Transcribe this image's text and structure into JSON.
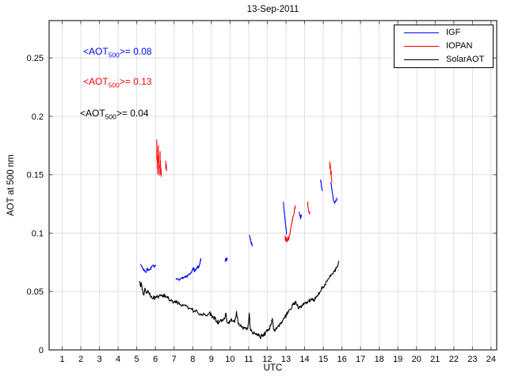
{
  "title": "13-Sep-2011",
  "legend": {
    "entries": [
      {
        "label": "IGF",
        "color": "#0000ff"
      },
      {
        "label": "IOPAN",
        "color": "#ff0000"
      },
      {
        "label": "SolarAOT",
        "color": "#000000"
      }
    ]
  },
  "chart_data": {
    "type": "line",
    "title": "13-Sep-2011",
    "xlabel": "UTC",
    "ylabel": "AOT at 500 nm",
    "xlim": [
      0.3,
      24.3
    ],
    "ylim": [
      0,
      0.282
    ],
    "grid": true,
    "grid_color": "#e0e0e0",
    "axis_color": "#262626",
    "tick_color": "#555555",
    "legend_position": "top-right",
    "xticks": [
      1,
      2,
      3,
      4,
      5,
      6,
      7,
      8,
      9,
      10,
      11,
      12,
      13,
      14,
      15,
      16,
      17,
      18,
      19,
      20,
      21,
      22,
      23,
      24
    ],
    "xtick_labels": [
      "1",
      "2",
      "3",
      "4",
      "5",
      "6",
      "7",
      "8",
      "9",
      "10",
      "11",
      "12",
      "13",
      "14",
      "15",
      "16",
      "17",
      "18",
      "19",
      "20",
      "21",
      "22",
      "23",
      "24"
    ],
    "yticks": [
      0,
      0.05,
      0.1,
      0.15,
      0.2,
      0.25
    ],
    "ytick_labels": [
      "0",
      "0.05",
      "0.1",
      "0.15",
      "0.2",
      "0.25"
    ],
    "annotations": [
      {
        "prefix": "<AOT",
        "sub": "500",
        "suffix": ">= 0.08",
        "color": "#0000ff"
      },
      {
        "prefix": "<AOT",
        "sub": "500",
        "suffix": ">= 0.13",
        "color": "#ff0000"
      },
      {
        "prefix": "<AOT",
        "sub": "500",
        "suffix": ">= 0.04",
        "color": "#000000"
      }
    ],
    "series": [
      {
        "name": "IGF",
        "color": "#0000ff",
        "mean_aot500": 0.08,
        "jitter": 0.0012,
        "segments": [
          [
            [
              5.2,
              0.0735
            ],
            [
              5.28,
              0.0715
            ],
            [
              5.36,
              0.069
            ],
            [
              5.44,
              0.0672
            ],
            [
              5.5,
              0.0668
            ],
            [
              5.56,
              0.0695
            ],
            [
              5.62,
              0.0682
            ],
            [
              5.7,
              0.0688
            ],
            [
              5.78,
              0.0703
            ],
            [
              5.86,
              0.0722
            ],
            [
              5.95,
              0.0712
            ],
            [
              6.02,
              0.0728
            ]
          ],
          [
            [
              7.1,
              0.0605
            ],
            [
              7.2,
              0.061
            ],
            [
              7.3,
              0.0605
            ],
            [
              7.42,
              0.0612
            ],
            [
              7.52,
              0.0618
            ],
            [
              7.62,
              0.0622
            ],
            [
              7.72,
              0.0635
            ],
            [
              7.82,
              0.065
            ],
            [
              7.9,
              0.066
            ],
            [
              7.98,
              0.068
            ],
            [
              8.04,
              0.0705
            ],
            [
              8.1,
              0.0672
            ],
            [
              8.18,
              0.0695
            ],
            [
              8.26,
              0.0718
            ],
            [
              8.32,
              0.0705
            ],
            [
              8.38,
              0.074
            ],
            [
              8.44,
              0.0785
            ]
          ],
          [
            [
              9.74,
              0.0755
            ],
            [
              9.77,
              0.0785
            ],
            [
              9.81,
              0.0762
            ],
            [
              9.85,
              0.0792
            ]
          ],
          [
            [
              11.05,
              0.0985
            ],
            [
              11.09,
              0.0948
            ],
            [
              11.13,
              0.0922
            ],
            [
              11.17,
              0.0905
            ],
            [
              11.2,
              0.0892
            ]
          ],
          [
            [
              12.86,
              0.1268
            ],
            [
              12.89,
              0.1205
            ],
            [
              12.92,
              0.1165
            ],
            [
              12.95,
              0.112
            ],
            [
              12.98,
              0.107
            ],
            [
              13.01,
              0.103
            ],
            [
              13.04,
              0.0992
            ]
          ],
          [
            [
              13.71,
              0.1182
            ],
            [
              13.75,
              0.1148
            ],
            [
              13.79,
              0.1128
            ],
            [
              13.83,
              0.1158
            ]
          ],
          [
            [
              14.86,
              0.1458
            ],
            [
              14.89,
              0.1422
            ],
            [
              14.92,
              0.1392
            ],
            [
              14.95,
              0.1362
            ]
          ],
          [
            [
              15.4,
              0.1438
            ],
            [
              15.45,
              0.1382
            ],
            [
              15.5,
              0.1332
            ],
            [
              15.55,
              0.128
            ],
            [
              15.6,
              0.1255
            ],
            [
              15.65,
              0.1268
            ],
            [
              15.7,
              0.1285
            ],
            [
              15.75,
              0.1302
            ]
          ]
        ]
      },
      {
        "name": "IOPAN",
        "color": "#ff0000",
        "mean_aot500": 0.13,
        "jitter": 0.0015,
        "segments": [
          [
            [
              6.07,
              0.1802
            ],
            [
              6.08,
              0.1625
            ],
            [
              6.09,
              0.1732
            ],
            [
              6.1,
              0.1555
            ],
            [
              6.11,
              0.1658
            ],
            [
              6.12,
              0.1502
            ]
          ],
          [
            [
              6.16,
              0.1752
            ],
            [
              6.17,
              0.1602
            ],
            [
              6.18,
              0.1682
            ],
            [
              6.19,
              0.1522
            ],
            [
              6.2,
              0.1582
            ],
            [
              6.21,
              0.1492
            ]
          ],
          [
            [
              6.25,
              0.1702
            ],
            [
              6.26,
              0.1562
            ],
            [
              6.27,
              0.1622
            ],
            [
              6.28,
              0.1502
            ],
            [
              6.3,
              0.1552
            ],
            [
              6.32,
              0.1482
            ]
          ],
          [
            [
              6.55,
              0.162
            ],
            [
              6.56,
              0.1552
            ],
            [
              6.58,
              0.1592
            ],
            [
              6.6,
              0.1532
            ]
          ],
          [
            [
              12.95,
              0.098
            ],
            [
              12.98,
              0.0932
            ],
            [
              13.02,
              0.0962
            ],
            [
              13.06,
              0.0925
            ],
            [
              13.1,
              0.097
            ],
            [
              13.15,
              0.0945
            ],
            [
              13.2,
              0.099
            ],
            [
              13.25,
              0.104
            ],
            [
              13.3,
              0.108
            ],
            [
              13.35,
              0.112
            ],
            [
              13.4,
              0.115
            ],
            [
              13.45,
              0.119
            ],
            [
              13.5,
              0.1238
            ]
          ],
          [
            [
              14.16,
              0.127
            ],
            [
              14.19,
              0.122
            ],
            [
              14.22,
              0.1192
            ],
            [
              14.25,
              0.1168
            ],
            [
              14.28,
              0.1182
            ]
          ],
          [
            [
              15.34,
              0.1612
            ],
            [
              15.36,
              0.1552
            ],
            [
              15.38,
              0.1582
            ],
            [
              15.4,
              0.1502
            ],
            [
              15.42,
              0.1535
            ],
            [
              15.44,
              0.1468
            ],
            [
              15.46,
              0.1438
            ]
          ]
        ]
      },
      {
        "name": "SolarAOT",
        "color": "#000000",
        "mean_aot500": 0.04,
        "jitter": 0.0018,
        "segments": [
          [
            [
              5.15,
              0.059
            ],
            [
              5.2,
              0.054
            ],
            [
              5.25,
              0.0575
            ],
            [
              5.3,
              0.052
            ],
            [
              5.38,
              0.047
            ],
            [
              5.45,
              0.0525
            ],
            [
              5.52,
              0.0495
            ],
            [
              5.6,
              0.051
            ],
            [
              5.68,
              0.0475
            ],
            [
              5.78,
              0.046
            ],
            [
              5.88,
              0.0445
            ],
            [
              6.0,
              0.045
            ],
            [
              6.1,
              0.0455
            ],
            [
              6.2,
              0.046
            ],
            [
              6.3,
              0.0465
            ],
            [
              6.42,
              0.047
            ],
            [
              6.52,
              0.0455
            ],
            [
              6.62,
              0.045
            ],
            [
              6.72,
              0.0435
            ],
            [
              6.82,
              0.042
            ],
            [
              6.92,
              0.0415
            ],
            [
              7.02,
              0.041
            ],
            [
              7.12,
              0.0405
            ],
            [
              7.22,
              0.04
            ],
            [
              7.35,
              0.039
            ],
            [
              7.5,
              0.038
            ],
            [
              7.65,
              0.0375
            ],
            [
              7.8,
              0.036
            ],
            [
              7.95,
              0.0345
            ],
            [
              8.1,
              0.0335
            ],
            [
              8.25,
              0.0325
            ],
            [
              8.4,
              0.031
            ],
            [
              8.55,
              0.03
            ],
            [
              8.7,
              0.0295
            ],
            [
              8.8,
              0.0305
            ],
            [
              8.9,
              0.032
            ],
            [
              9.0,
              0.0295
            ],
            [
              9.1,
              0.028
            ],
            [
              9.2,
              0.027
            ],
            [
              9.3,
              0.0245
            ],
            [
              9.4,
              0.0235
            ],
            [
              9.5,
              0.026
            ],
            [
              9.6,
              0.025
            ],
            [
              9.7,
              0.0265
            ],
            [
              9.78,
              0.0315
            ],
            [
              9.85,
              0.0235
            ],
            [
              9.95,
              0.0225
            ],
            [
              10.05,
              0.026
            ],
            [
              10.15,
              0.0245
            ],
            [
              10.25,
              0.0235
            ],
            [
              10.35,
              0.033
            ],
            [
              10.45,
              0.022
            ],
            [
              10.55,
              0.0205
            ],
            [
              10.65,
              0.0195
            ],
            [
              10.75,
              0.019
            ],
            [
              10.85,
              0.0185
            ],
            [
              10.95,
              0.018
            ],
            [
              11.03,
              0.0315
            ],
            [
              11.1,
              0.0165
            ],
            [
              11.2,
              0.015
            ],
            [
              11.3,
              0.0145
            ],
            [
              11.4,
              0.013
            ],
            [
              11.5,
              0.0125
            ],
            [
              11.6,
              0.0115
            ],
            [
              11.7,
              0.012
            ],
            [
              11.8,
              0.0135
            ],
            [
              11.9,
              0.0145
            ],
            [
              12.0,
              0.016
            ],
            [
              12.1,
              0.0185
            ],
            [
              12.2,
              0.022
            ],
            [
              12.27,
              0.027
            ],
            [
              12.33,
              0.018
            ],
            [
              12.42,
              0.0165
            ],
            [
              12.52,
              0.019
            ],
            [
              12.62,
              0.021
            ],
            [
              12.72,
              0.0225
            ],
            [
              12.82,
              0.025
            ],
            [
              12.92,
              0.027
            ],
            [
              13.02,
              0.03
            ],
            [
              13.12,
              0.032
            ],
            [
              13.22,
              0.0345
            ],
            [
              13.32,
              0.037
            ],
            [
              13.42,
              0.039
            ],
            [
              13.5,
              0.041
            ],
            [
              13.6,
              0.038
            ],
            [
              13.7,
              0.036
            ],
            [
              13.8,
              0.037
            ],
            [
              13.9,
              0.0385
            ],
            [
              14.0,
              0.04
            ],
            [
              14.1,
              0.041
            ],
            [
              14.2,
              0.0415
            ],
            [
              14.3,
              0.042
            ],
            [
              14.4,
              0.0425
            ],
            [
              14.5,
              0.043
            ],
            [
              14.6,
              0.044
            ],
            [
              14.7,
              0.046
            ],
            [
              14.8,
              0.049
            ],
            [
              14.9,
              0.052
            ],
            [
              15.0,
              0.054
            ],
            [
              15.1,
              0.056
            ],
            [
              15.2,
              0.059
            ],
            [
              15.3,
              0.061
            ],
            [
              15.4,
              0.063
            ],
            [
              15.5,
              0.065
            ],
            [
              15.6,
              0.067
            ],
            [
              15.7,
              0.07
            ],
            [
              15.78,
              0.072
            ],
            [
              15.85,
              0.0755
            ]
          ]
        ]
      }
    ]
  }
}
